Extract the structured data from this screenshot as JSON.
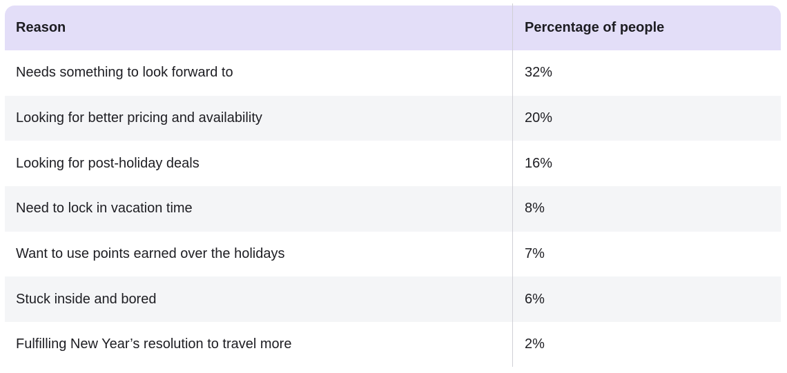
{
  "chart_data": {
    "type": "table",
    "columns": [
      "Reason",
      "Percentage of people"
    ],
    "rows": [
      {
        "reason": "Needs something to look forward to",
        "percentage": "32%",
        "value": 32
      },
      {
        "reason": "Looking for better pricing and availability",
        "percentage": "20%",
        "value": 20
      },
      {
        "reason": "Looking for post-holiday deals",
        "percentage": "16%",
        "value": 16
      },
      {
        "reason": "Need to lock in vacation time",
        "percentage": "8%",
        "value": 8
      },
      {
        "reason": "Want to use points earned over the holidays",
        "percentage": "7%",
        "value": 7
      },
      {
        "reason": "Stuck inside and bored",
        "percentage": "6%",
        "value": 6
      },
      {
        "reason": "Fulfilling New Year’s resolution to travel more",
        "percentage": "2%",
        "value": 2
      }
    ],
    "layout_hints": {
      "stripe_pattern": "even data rows white, odd data rows gray",
      "header_style": "lavender background, bold text, rounded top corners",
      "column_divider": "thin vertical gray line between columns, full table height"
    }
  },
  "colors": {
    "header_bg": "#e3def8",
    "stripe_bg": "#f4f5f7",
    "divider": "#cfcfd5",
    "text": "#1d1d22"
  }
}
